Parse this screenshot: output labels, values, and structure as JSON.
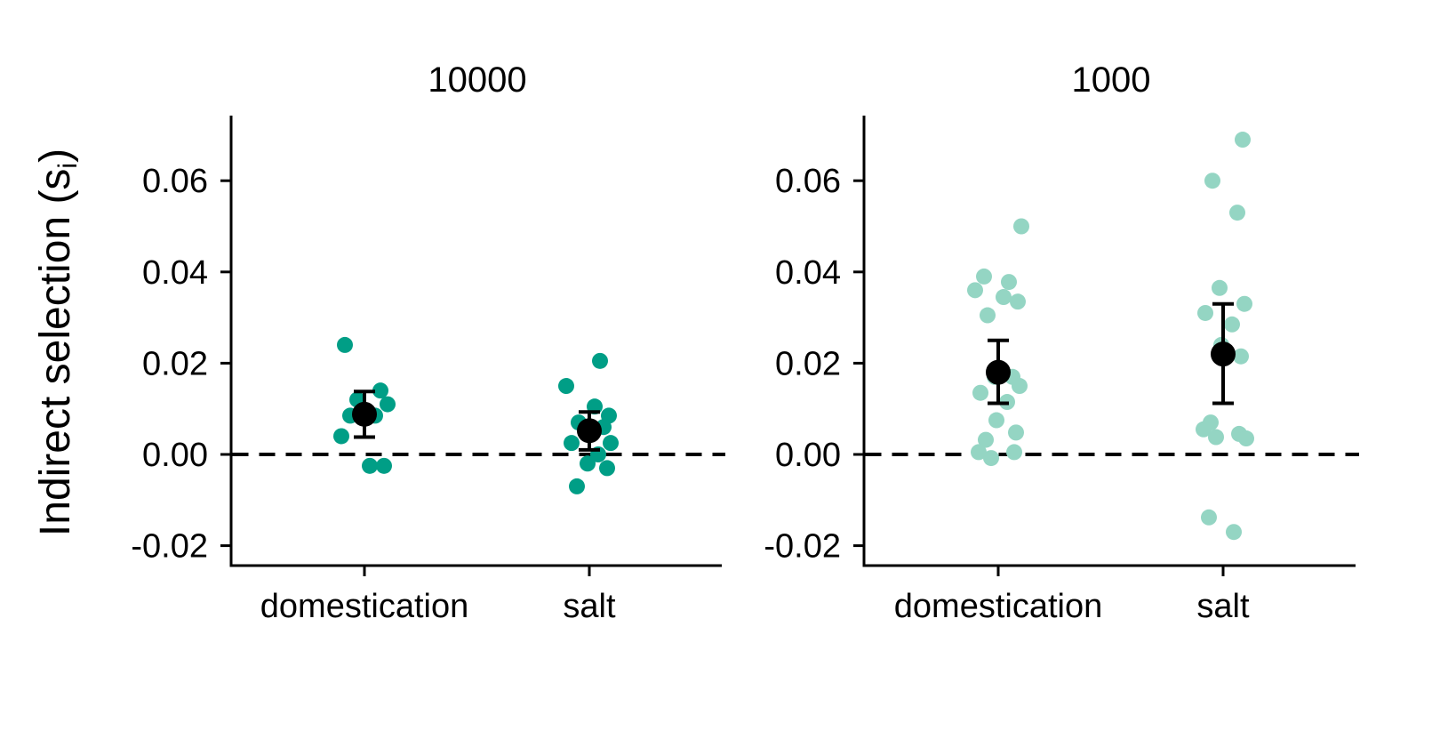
{
  "chart_data": {
    "type": "scatter",
    "y_axis": {
      "label": "Indirect selection (s",
      "label_subscript": "i",
      "label_close": ")",
      "ylim": [
        -0.024,
        0.074
      ],
      "ticks": [
        -0.02,
        0.0,
        0.02,
        0.04,
        0.06
      ],
      "tick_labels": [
        "-0.02",
        "0.00",
        "0.02",
        "0.04",
        "0.06"
      ]
    },
    "reference_line": {
      "y": 0.0,
      "style": "dashed"
    },
    "categories": [
      "domestication",
      "salt"
    ],
    "grid": false,
    "panels": [
      {
        "title": "10000",
        "point_color": "#009E86",
        "points": {
          "domestication": [
            0.024,
            0.014,
            0.012,
            0.011,
            0.0085,
            0.0085,
            0.004,
            -0.0025,
            -0.0025
          ],
          "salt": [
            0.0205,
            0.015,
            0.0105,
            0.0085,
            0.007,
            0.006,
            0.005,
            0.0025,
            0.0025,
            0.0,
            -0.002,
            -0.003,
            -0.007
          ]
        },
        "summary": {
          "domestication": {
            "mean": 0.0088,
            "lower": 0.0038,
            "upper": 0.0138
          },
          "salt": {
            "mean": 0.0052,
            "lower": 0.001,
            "upper": 0.0093
          }
        }
      },
      {
        "title": "1000",
        "point_color": "#94D5C3",
        "points": {
          "domestication": [
            0.05,
            0.039,
            0.0378,
            0.036,
            0.0345,
            0.0335,
            0.0305,
            0.017,
            0.017,
            0.015,
            0.0135,
            0.0115,
            0.0075,
            0.0048,
            0.0032,
            0.0005,
            0.0005,
            -0.0008
          ],
          "salt": [
            0.069,
            0.06,
            0.053,
            0.0365,
            0.033,
            0.031,
            0.0285,
            0.024,
            0.0215,
            0.007,
            0.0055,
            0.0045,
            0.0038,
            0.0035,
            -0.0138,
            -0.017
          ]
        },
        "summary": {
          "domestication": {
            "mean": 0.018,
            "lower": 0.0112,
            "upper": 0.025
          },
          "salt": {
            "mean": 0.022,
            "lower": 0.0112,
            "upper": 0.033
          }
        }
      }
    ],
    "summary_color": "#000000"
  }
}
